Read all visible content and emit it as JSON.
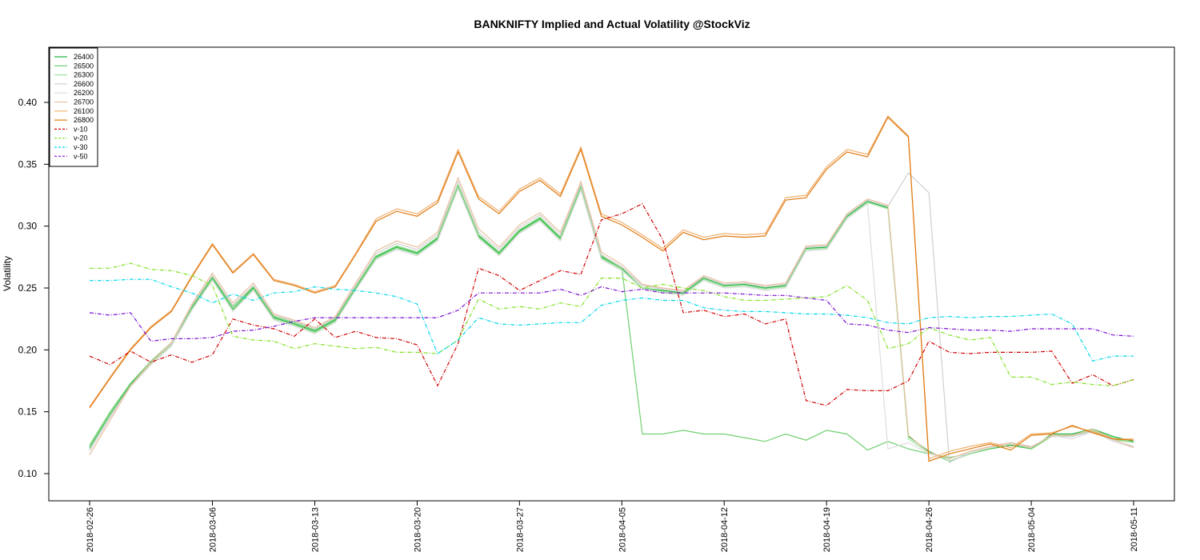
{
  "chart_data": {
    "type": "line",
    "title": "BANKNIFTY Implied and Actual Volatility @StockViz",
    "xlabel": "",
    "ylabel": "Volatility",
    "ylim": [
      0.08,
      0.44
    ],
    "yticks": [
      "0.10",
      "0.15",
      "0.20",
      "0.25",
      "0.30",
      "0.35",
      "0.40"
    ],
    "xticks": [
      "2018-02-26",
      "2018-03-06",
      "2018-03-13",
      "2018-03-20",
      "2018-03-27",
      "2018-04-05",
      "2018-04-12",
      "2018-04-19",
      "2018-04-26",
      "2018-05-04",
      "2018-05-11"
    ],
    "xtick_index": [
      0,
      6,
      11,
      16,
      21,
      26,
      31,
      36,
      41,
      46,
      51
    ],
    "n_points": 52,
    "grid": false,
    "legend_position": "top-left",
    "series": [
      {
        "name": "26400",
        "color": "#1eb43c",
        "dash": "solid",
        "values": [
          0.121,
          0.148,
          0.172,
          0.19,
          0.205,
          0.234,
          0.258,
          0.233,
          0.25,
          0.226,
          0.221,
          0.215,
          0.224,
          0.25,
          0.275,
          0.283,
          0.278,
          0.29,
          0.332,
          0.292,
          0.278,
          0.296,
          0.306,
          0.29,
          0.331,
          0.275,
          0.266,
          0.25,
          0.248,
          0.246,
          0.258,
          0.252,
          0.253,
          0.25,
          0.252,
          0.282,
          0.283,
          0.308,
          0.32,
          0.315,
          0.13,
          0.118,
          0.11,
          0.116,
          0.12,
          0.123,
          0.12,
          0.132,
          0.132,
          0.136,
          0.13,
          0.126
        ]
      },
      {
        "name": "26500",
        "color": "#6fd06f",
        "dash": "solid",
        "values": [
          0.123,
          0.15,
          0.173,
          0.191,
          0.206,
          0.235,
          0.259,
          0.235,
          0.251,
          0.227,
          0.222,
          0.216,
          0.225,
          0.251,
          0.276,
          0.284,
          0.279,
          0.291,
          0.333,
          0.293,
          0.279,
          0.297,
          0.307,
          0.291,
          0.332,
          0.276,
          0.266,
          0.132,
          0.132,
          0.135,
          0.132,
          0.132,
          0.129,
          0.126,
          0.132,
          0.127,
          0.135,
          0.132,
          0.119,
          0.126,
          0.12,
          0.116,
          0.113,
          0.116,
          0.12,
          0.124,
          0.12,
          0.13,
          0.131,
          0.135,
          0.128,
          0.125
        ]
      },
      {
        "name": "26300",
        "color": "#9ee09e",
        "dash": "solid",
        "values": [
          0.12,
          0.147,
          0.171,
          0.189,
          0.204,
          0.233,
          0.257,
          0.232,
          0.249,
          0.225,
          0.22,
          0.214,
          0.223,
          0.249,
          0.274,
          0.282,
          0.277,
          0.289,
          0.331,
          0.291,
          0.277,
          0.295,
          0.305,
          0.289,
          0.33,
          0.274,
          0.265,
          0.25,
          0.247,
          0.245,
          0.257,
          0.251,
          0.252,
          0.249,
          0.251,
          0.281,
          0.282,
          0.307,
          0.319,
          0.314,
          0.128,
          0.117,
          0.11,
          0.116,
          0.121,
          0.124,
          0.121,
          0.131,
          0.131,
          0.135,
          0.129,
          0.125
        ]
      },
      {
        "name": "26600",
        "color": "#cfcfcf",
        "dash": "solid",
        "values": [
          0.119,
          0.146,
          0.171,
          0.19,
          0.205,
          0.236,
          0.26,
          0.236,
          0.252,
          0.228,
          0.223,
          0.217,
          0.226,
          0.252,
          0.278,
          0.286,
          0.281,
          0.293,
          0.336,
          0.295,
          0.281,
          0.299,
          0.309,
          0.293,
          0.334,
          0.277,
          0.267,
          0.252,
          0.249,
          0.247,
          0.259,
          0.253,
          0.254,
          0.251,
          0.253,
          0.283,
          0.284,
          0.309,
          0.321,
          0.316,
          0.343,
          0.327,
          0.109,
          0.117,
          0.122,
          0.125,
          0.122,
          0.13,
          0.13,
          0.134,
          0.127,
          0.122
        ]
      },
      {
        "name": "26200",
        "color": "#dedede",
        "dash": "solid",
        "values": [
          0.118,
          0.145,
          0.17,
          0.188,
          0.203,
          0.232,
          0.256,
          0.231,
          0.248,
          0.224,
          0.219,
          0.213,
          0.222,
          0.248,
          0.273,
          0.281,
          0.276,
          0.288,
          0.33,
          0.29,
          0.276,
          0.294,
          0.304,
          0.288,
          0.329,
          0.273,
          0.264,
          0.249,
          0.246,
          0.244,
          0.256,
          0.25,
          0.251,
          0.248,
          0.25,
          0.28,
          0.281,
          0.306,
          0.318,
          0.12,
          0.125,
          0.116,
          0.112,
          0.117,
          0.121,
          0.124,
          0.121,
          0.131,
          0.128,
          0.134,
          0.126,
          0.121
        ]
      },
      {
        "name": "26700",
        "color": "#e9c0a0",
        "dash": "solid",
        "values": [
          0.115,
          0.143,
          0.171,
          0.19,
          0.206,
          0.237,
          0.262,
          0.238,
          0.254,
          0.229,
          0.224,
          0.218,
          0.227,
          0.254,
          0.28,
          0.288,
          0.283,
          0.295,
          0.339,
          0.298,
          0.283,
          0.301,
          0.311,
          0.295,
          0.336,
          0.279,
          0.269,
          0.253,
          0.25,
          0.248,
          0.26,
          0.254,
          0.255,
          0.252,
          0.254,
          0.284,
          0.285,
          0.31,
          0.322,
          0.317,
          0.131,
          0.117,
          0.112,
          0.118,
          0.122,
          0.125,
          0.121,
          0.131,
          0.131,
          0.136,
          0.128,
          0.121
        ]
      },
      {
        "name": "26100",
        "color": "#f0b070",
        "dash": "solid",
        "values": [
          0.154,
          0.178,
          0.201,
          0.219,
          0.232,
          0.26,
          0.286,
          0.263,
          0.278,
          0.257,
          0.253,
          0.247,
          0.252,
          0.278,
          0.306,
          0.314,
          0.31,
          0.321,
          0.362,
          0.324,
          0.312,
          0.33,
          0.339,
          0.326,
          0.364,
          0.31,
          0.303,
          0.293,
          0.282,
          0.297,
          0.291,
          0.294,
          0.293,
          0.294,
          0.323,
          0.325,
          0.348,
          0.362,
          0.358,
          0.389,
          0.373,
          0.112,
          0.118,
          0.122,
          0.125,
          0.121,
          0.132,
          0.133,
          0.138,
          0.134,
          0.128,
          0.128
        ]
      },
      {
        "name": "26800",
        "color": "#e07a10",
        "dash": "solid",
        "values": [
          0.153,
          0.177,
          0.2,
          0.218,
          0.231,
          0.259,
          0.285,
          0.262,
          0.277,
          0.256,
          0.252,
          0.246,
          0.251,
          0.277,
          0.304,
          0.312,
          0.308,
          0.319,
          0.36,
          0.322,
          0.31,
          0.328,
          0.337,
          0.324,
          0.362,
          0.308,
          0.301,
          0.291,
          0.28,
          0.295,
          0.289,
          0.292,
          0.291,
          0.292,
          0.321,
          0.323,
          0.346,
          0.36,
          0.356,
          0.388,
          0.372,
          0.11,
          0.116,
          0.12,
          0.124,
          0.119,
          0.131,
          0.132,
          0.139,
          0.133,
          0.128,
          0.127
        ]
      },
      {
        "name": "v-10",
        "color": "#d00000",
        "dash": "dashed",
        "values": [
          0.195,
          0.188,
          0.199,
          0.19,
          0.196,
          0.19,
          0.196,
          0.225,
          0.22,
          0.217,
          0.211,
          0.225,
          0.21,
          0.215,
          0.21,
          0.209,
          0.204,
          0.171,
          0.205,
          0.266,
          0.26,
          0.248,
          0.256,
          0.264,
          0.261,
          0.305,
          0.31,
          0.318,
          0.289,
          0.23,
          0.232,
          0.227,
          0.229,
          0.221,
          0.225,
          0.159,
          0.155,
          0.168,
          0.167,
          0.167,
          0.175,
          0.207,
          0.198,
          0.197,
          0.198,
          0.198,
          0.198,
          0.199,
          0.173,
          0.18,
          0.171,
          0.176
        ]
      },
      {
        "name": "v-20",
        "color": "#80e020",
        "dash": "dashed",
        "values": [
          0.266,
          0.266,
          0.27,
          0.265,
          0.264,
          0.26,
          0.252,
          0.211,
          0.208,
          0.207,
          0.201,
          0.205,
          0.203,
          0.201,
          0.202,
          0.198,
          0.198,
          0.197,
          0.208,
          0.241,
          0.233,
          0.235,
          0.233,
          0.238,
          0.235,
          0.258,
          0.258,
          0.25,
          0.253,
          0.25,
          0.248,
          0.243,
          0.24,
          0.24,
          0.241,
          0.242,
          0.243,
          0.252,
          0.24,
          0.201,
          0.205,
          0.218,
          0.212,
          0.208,
          0.21,
          0.178,
          0.178,
          0.172,
          0.174,
          0.172,
          0.171,
          0.176
        ]
      },
      {
        "name": "v-30",
        "color": "#00d8e8",
        "dash": "dashed",
        "values": [
          0.256,
          0.256,
          0.257,
          0.257,
          0.251,
          0.246,
          0.238,
          0.245,
          0.24,
          0.246,
          0.247,
          0.251,
          0.249,
          0.248,
          0.246,
          0.243,
          0.237,
          0.197,
          0.208,
          0.226,
          0.221,
          0.22,
          0.221,
          0.222,
          0.222,
          0.236,
          0.24,
          0.242,
          0.24,
          0.24,
          0.234,
          0.232,
          0.231,
          0.231,
          0.23,
          0.229,
          0.229,
          0.228,
          0.226,
          0.222,
          0.221,
          0.226,
          0.227,
          0.226,
          0.227,
          0.227,
          0.228,
          0.229,
          0.221,
          0.191,
          0.195,
          0.195
        ]
      },
      {
        "name": "v-50",
        "color": "#7a10d0",
        "dash": "dashed",
        "values": [
          0.23,
          0.228,
          0.23,
          0.207,
          0.209,
          0.209,
          0.21,
          0.215,
          0.216,
          0.219,
          0.223,
          0.226,
          0.226,
          0.226,
          0.226,
          0.226,
          0.226,
          0.226,
          0.232,
          0.246,
          0.246,
          0.246,
          0.246,
          0.249,
          0.244,
          0.251,
          0.247,
          0.249,
          0.246,
          0.246,
          0.246,
          0.246,
          0.245,
          0.244,
          0.244,
          0.242,
          0.24,
          0.221,
          0.22,
          0.216,
          0.214,
          0.218,
          0.217,
          0.216,
          0.216,
          0.215,
          0.217,
          0.217,
          0.217,
          0.217,
          0.212,
          0.211
        ]
      }
    ]
  }
}
